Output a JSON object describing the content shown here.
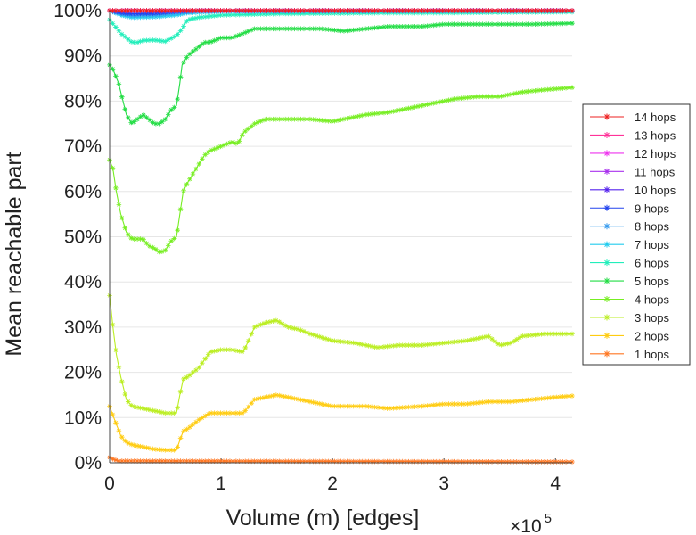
{
  "chart_data": {
    "type": "line",
    "xlabel": "Volume (m) [edges]",
    "ylabel": "Mean reachable part",
    "x_multiplier": "×10",
    "x_multiplier_exp": "5",
    "xlim": [
      0,
      415000
    ],
    "ylim": [
      0,
      100
    ],
    "xticks": [
      0,
      100000,
      200000,
      300000,
      400000
    ],
    "xtick_labels": [
      "0",
      "1",
      "2",
      "3",
      "4"
    ],
    "yticks": [
      0,
      10,
      20,
      30,
      40,
      50,
      60,
      70,
      80,
      90,
      100
    ],
    "ytick_labels": [
      "0%",
      "10%",
      "20%",
      "30%",
      "40%",
      "50%",
      "60%",
      "70%",
      "80%",
      "90%",
      "100%"
    ],
    "grid": true,
    "legend_position": "right",
    "marker": "asterisk",
    "series": [
      {
        "name": "14 hops",
        "color": "#ee2222",
        "x": [
          0,
          415000
        ],
        "y": [
          100,
          100
        ]
      },
      {
        "name": "13 hops",
        "color": "#ff3399",
        "x": [
          0,
          415000
        ],
        "y": [
          100,
          100
        ]
      },
      {
        "name": "12 hops",
        "color": "#ee33ee",
        "x": [
          0,
          415000
        ],
        "y": [
          100,
          100
        ]
      },
      {
        "name": "11 hops",
        "color": "#aa33ee",
        "x": [
          0,
          415000
        ],
        "y": [
          100,
          100
        ]
      },
      {
        "name": "10 hops",
        "color": "#5522ee",
        "x": [
          0,
          415000
        ],
        "y": [
          100,
          100
        ]
      },
      {
        "name": "9 hops",
        "color": "#2244ee",
        "x": [
          0,
          10000,
          20000,
          40000,
          60000,
          80000,
          415000
        ],
        "y": [
          100,
          99.5,
          99.3,
          99.4,
          99.8,
          100,
          100
        ]
      },
      {
        "name": "8 hops",
        "color": "#3399ee",
        "x": [
          0,
          10000,
          20000,
          40000,
          60000,
          80000,
          415000
        ],
        "y": [
          100,
          99.3,
          99.0,
          99.1,
          99.5,
          99.9,
          100
        ]
      },
      {
        "name": "7 hops",
        "color": "#22ccee",
        "x": [
          0,
          10000,
          20000,
          40000,
          60000,
          70000,
          100000,
          415000
        ],
        "y": [
          100,
          99.0,
          98.5,
          98.6,
          99.0,
          99.5,
          99.8,
          99.9
        ]
      },
      {
        "name": "6 hops",
        "color": "#22eebb",
        "x": [
          0,
          5000,
          10000,
          15000,
          20000,
          25000,
          30000,
          40000,
          50000,
          60000,
          65000,
          70000,
          80000,
          100000,
          150000,
          200000,
          250000,
          300000,
          350000,
          415000
        ],
        "y": [
          98,
          96.5,
          95,
          94,
          93,
          93,
          93.4,
          93.5,
          93.2,
          94.5,
          96,
          98,
          98.5,
          99,
          99.3,
          99.4,
          99.5,
          99.5,
          99.6,
          99.7
        ]
      },
      {
        "name": "5 hops",
        "color": "#22dd44",
        "x": [
          0,
          3000,
          8000,
          12000,
          15000,
          20000,
          25000,
          30000,
          35000,
          40000,
          45000,
          50000,
          55000,
          60000,
          63000,
          65000,
          70000,
          75000,
          80000,
          85000,
          90000,
          95000,
          100000,
          110000,
          120000,
          130000,
          150000,
          170000,
          190000,
          210000,
          230000,
          250000,
          280000,
          300000,
          320000,
          350000,
          380000,
          415000
        ],
        "y": [
          88,
          87,
          84,
          80,
          77,
          75,
          76,
          77,
          76,
          75,
          75,
          76,
          78,
          79,
          84,
          88,
          90,
          91,
          92,
          93,
          93,
          93.5,
          94,
          94,
          95,
          96,
          96,
          96,
          96,
          95.5,
          96,
          96.5,
          96.5,
          97,
          97,
          97,
          97,
          97.2
        ]
      },
      {
        "name": "4 hops",
        "color": "#77ee22",
        "x": [
          0,
          3000,
          6000,
          10000,
          15000,
          20000,
          25000,
          30000,
          35000,
          40000,
          45000,
          50000,
          55000,
          60000,
          63000,
          66000,
          70000,
          75000,
          80000,
          85000,
          90000,
          100000,
          110000,
          115000,
          120000,
          130000,
          140000,
          150000,
          160000,
          180000,
          200000,
          210000,
          230000,
          250000,
          270000,
          290000,
          310000,
          330000,
          350000,
          370000,
          390000,
          415000
        ],
        "y": [
          67,
          65,
          60,
          55,
          51,
          49.5,
          49.5,
          49.5,
          48,
          47.5,
          46.5,
          47,
          49,
          50,
          55,
          60,
          62,
          64,
          66,
          68,
          69,
          70,
          71,
          70.5,
          73,
          75,
          76,
          76,
          76,
          76,
          75.5,
          76,
          77,
          77.5,
          78.5,
          79.5,
          80.5,
          81,
          81,
          82,
          82.5,
          83
        ]
      },
      {
        "name": "3 hops",
        "color": "#bbee22",
        "x": [
          0,
          3000,
          6000,
          10000,
          15000,
          20000,
          30000,
          40000,
          50000,
          60000,
          63000,
          66000,
          70000,
          80000,
          90000,
          100000,
          110000,
          120000,
          130000,
          140000,
          150000,
          160000,
          170000,
          180000,
          200000,
          220000,
          240000,
          260000,
          280000,
          300000,
          320000,
          340000,
          350000,
          360000,
          370000,
          390000,
          415000
        ],
        "y": [
          37,
          30,
          24,
          19,
          14,
          12.5,
          12,
          11.5,
          11,
          11,
          15,
          18.5,
          19,
          21,
          24.5,
          25,
          25,
          24.5,
          30,
          31,
          31.5,
          30,
          29.5,
          28.5,
          27,
          26.5,
          25.5,
          26,
          26,
          26.5,
          27,
          28,
          26,
          26.5,
          28,
          28.5,
          28.5
        ]
      },
      {
        "name": "2 hops",
        "color": "#ffcc11",
        "x": [
          0,
          3000,
          6000,
          10000,
          15000,
          20000,
          30000,
          40000,
          50000,
          60000,
          63000,
          66000,
          70000,
          80000,
          90000,
          100000,
          120000,
          130000,
          140000,
          150000,
          160000,
          180000,
          200000,
          230000,
          250000,
          280000,
          300000,
          320000,
          340000,
          360000,
          380000,
          400000,
          415000
        ],
        "y": [
          12.5,
          10.5,
          8.5,
          6,
          4.5,
          4,
          3.5,
          3,
          2.8,
          2.8,
          5,
          7,
          7.5,
          9.5,
          11,
          11,
          11,
          14,
          14.5,
          15,
          14.5,
          13.5,
          12.5,
          12.5,
          12,
          12.5,
          13,
          13,
          13.5,
          13.5,
          14,
          14.5,
          14.8
        ]
      },
      {
        "name": "1 hops",
        "color": "#ff7722",
        "x": [
          0,
          3000,
          8000,
          415000
        ],
        "y": [
          1.2,
          0.8,
          0.4,
          0.2
        ]
      }
    ]
  }
}
